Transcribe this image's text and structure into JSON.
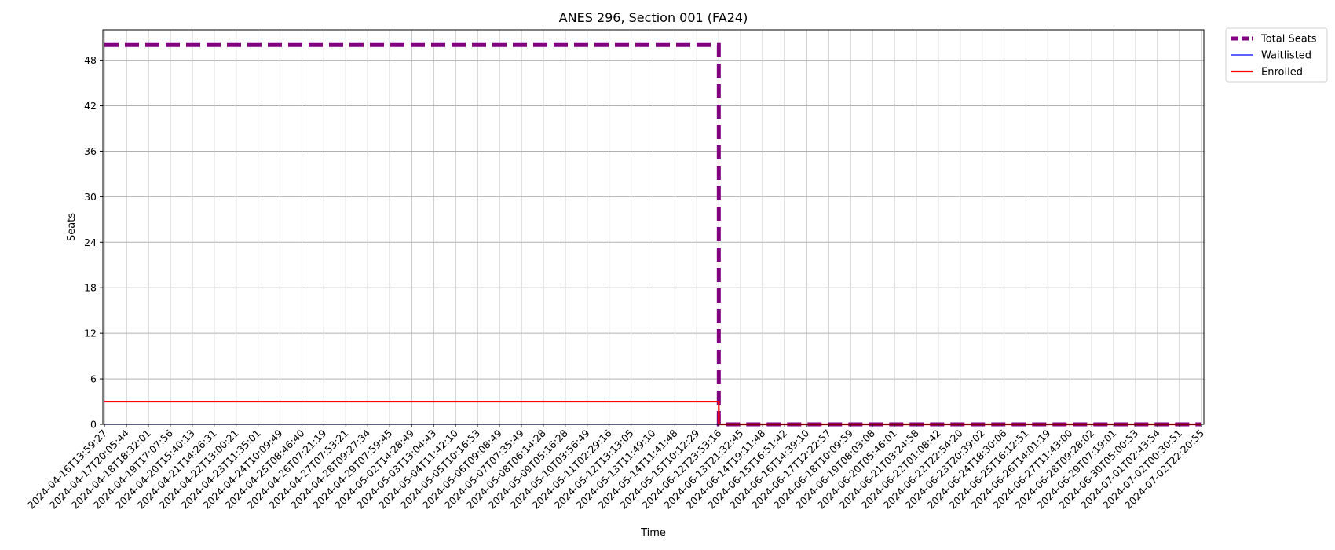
{
  "chart_data": {
    "type": "line",
    "title": "ANES 296, Section 001 (FA24)",
    "xlabel": "Time",
    "ylabel": "Seats",
    "ylim": [
      0,
      52
    ],
    "yticks": [
      0,
      6,
      12,
      18,
      24,
      30,
      36,
      42,
      48
    ],
    "grid": true,
    "legend_position": "outside-top-right",
    "x": [
      "2024-04-16T13:59:27",
      "2024-04-17T20:05:44",
      "2024-04-18T18:32:01",
      "2024-04-19T17:07:56",
      "2024-04-20T15:40:13",
      "2024-04-21T14:26:31",
      "2024-04-22T13:00:21",
      "2024-04-23T11:35:01",
      "2024-04-24T10:09:49",
      "2024-04-25T08:46:40",
      "2024-04-26T07:21:19",
      "2024-04-27T07:53:21",
      "2024-04-28T09:27:34",
      "2024-04-29T07:59:45",
      "2024-05-02T14:28:49",
      "2024-05-03T13:04:43",
      "2024-05-04T11:42:10",
      "2024-05-05T10:16:53",
      "2024-05-06T09:08:49",
      "2024-05-07T07:35:49",
      "2024-05-08T06:14:28",
      "2024-05-09T05:16:28",
      "2024-05-10T03:56:49",
      "2024-05-11T02:29:16",
      "2024-05-12T13:13:05",
      "2024-05-13T11:49:10",
      "2024-05-14T11:41:48",
      "2024-05-15T10:12:29",
      "2024-06-12T23:53:16",
      "2024-06-13T21:32:45",
      "2024-06-14T19:11:48",
      "2024-06-15T16:51:42",
      "2024-06-16T14:39:10",
      "2024-06-17T12:22:57",
      "2024-06-18T10:09:59",
      "2024-06-19T08:03:08",
      "2024-06-20T05:46:01",
      "2024-06-21T03:24:58",
      "2024-06-22T01:08:42",
      "2024-06-22T22:54:20",
      "2024-06-23T20:39:02",
      "2024-06-24T18:30:06",
      "2024-06-25T16:12:51",
      "2024-06-26T14:01:19",
      "2024-06-27T11:43:00",
      "2024-06-28T09:28:02",
      "2024-06-29T07:19:01",
      "2024-06-30T05:00:53",
      "2024-07-01T02:43:54",
      "2024-07-02T00:30:51",
      "2024-07-02T22:20:55"
    ],
    "series": [
      {
        "name": "Total Seats",
        "color": "#800080",
        "style": "dashed",
        "step": true,
        "values": [
          50,
          50,
          50,
          50,
          50,
          50,
          50,
          50,
          50,
          50,
          50,
          50,
          50,
          50,
          50,
          50,
          50,
          50,
          50,
          50,
          50,
          50,
          50,
          50,
          50,
          50,
          50,
          50,
          0,
          0,
          0,
          0,
          0,
          0,
          0,
          0,
          0,
          0,
          0,
          0,
          0,
          0,
          0,
          0,
          0,
          0,
          0,
          0,
          0,
          0,
          0
        ]
      },
      {
        "name": "Waitlisted",
        "color": "#0000ff",
        "style": "solid",
        "step": true,
        "values": [
          0,
          0,
          0,
          0,
          0,
          0,
          0,
          0,
          0,
          0,
          0,
          0,
          0,
          0,
          0,
          0,
          0,
          0,
          0,
          0,
          0,
          0,
          0,
          0,
          0,
          0,
          0,
          0,
          0,
          0,
          0,
          0,
          0,
          0,
          0,
          0,
          0,
          0,
          0,
          0,
          0,
          0,
          0,
          0,
          0,
          0,
          0,
          0,
          0,
          0,
          0
        ]
      },
      {
        "name": "Enrolled",
        "color": "#ff0000",
        "style": "solid",
        "step": true,
        "values": [
          3,
          3,
          3,
          3,
          3,
          3,
          3,
          3,
          3,
          3,
          3,
          3,
          3,
          3,
          3,
          3,
          3,
          3,
          3,
          3,
          3,
          3,
          3,
          3,
          3,
          3,
          3,
          3,
          0,
          0,
          0,
          0,
          0,
          0,
          0,
          0,
          0,
          0,
          0,
          0,
          0,
          0,
          0,
          0,
          0,
          0,
          0,
          0,
          0,
          0,
          0
        ]
      }
    ]
  }
}
